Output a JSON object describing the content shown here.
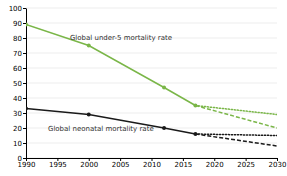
{
  "chart_data": {
    "type": "line",
    "xlim": [
      1990,
      2030
    ],
    "ylim": [
      0,
      100
    ],
    "xticks": [
      1990,
      1995,
      2000,
      2005,
      2010,
      2015,
      2020,
      2025,
      2030
    ],
    "yticks": [
      0,
      10,
      20,
      30,
      40,
      50,
      60,
      70,
      80,
      90,
      100
    ],
    "grid": true,
    "series": [
      {
        "color": "#7ab648",
        "line_style": "solid",
        "marker": "circle",
        "x": [
          1990,
          2000,
          2012,
          2017
        ],
        "values": [
          89,
          75,
          47,
          35
        ]
      },
      {
        "color": "#1a1a1a",
        "line_style": "solid",
        "marker": "circle",
        "x": [
          1990,
          2000,
          2012,
          2017
        ],
        "values": [
          33,
          29,
          20,
          16
        ]
      },
      {
        "color": "#7ab648",
        "line_style": "dashed",
        "x": [
          2017,
          2030
        ],
        "values": [
          35,
          20
        ]
      },
      {
        "color": "#7ab648",
        "line_style": "dotted",
        "x": [
          2017,
          2030
        ],
        "values": [
          35,
          29
        ]
      },
      {
        "color": "#1a1a1a",
        "line_style": "dashed",
        "x": [
          2017,
          2030
        ],
        "values": [
          16,
          8
        ]
      },
      {
        "color": "#1a1a1a",
        "line_style": "dotted",
        "x": [
          2017,
          2030
        ],
        "values": [
          16,
          15
        ]
      }
    ],
    "annotations": [
      {
        "text": "Global under-5 mortality rate",
        "x": 1997,
        "y": 78,
        "position": "above"
      },
      {
        "text": "Global neonatal mortality rate",
        "x": 1993.5,
        "y": 22,
        "position": "below"
      }
    ]
  }
}
